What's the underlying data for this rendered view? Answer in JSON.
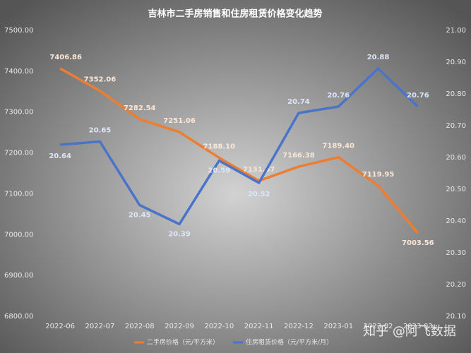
{
  "chart_data": {
    "type": "line",
    "title": "吉林市二手房销售和住房租赁价格变化趋势",
    "categories": [
      "2022-06",
      "2022-07",
      "2022-08",
      "2022-09",
      "2022-10",
      "2022-11",
      "2022-12",
      "2023-01",
      "2023-02",
      "2023-03"
    ],
    "series": [
      {
        "name": "二手房价格（元/平方米）",
        "color": "#ed7d31",
        "axis": "y",
        "values": [
          7406.86,
          7352.06,
          7282.54,
          7251.06,
          7188.1,
          7131.57,
          7166.38,
          7189.4,
          7119.95,
          7003.56
        ],
        "value_labels": [
          "7406.86",
          "7352.06",
          "7282.54",
          "7251.06",
          "7188.10",
          "7131.57",
          "7166.38",
          "7189.40",
          "7119.95",
          "7003.56"
        ]
      },
      {
        "name": "住房租赁价格（元/平方米/月）",
        "color": "#4a74c9",
        "axis": "y2",
        "values": [
          20.64,
          20.65,
          20.45,
          20.39,
          20.59,
          20.52,
          20.74,
          20.76,
          20.88,
          20.76
        ]
      }
    ],
    "ylim": [
      6800,
      7500
    ],
    "yticks": [
      {
        "value": 6800,
        "label": "6800.00"
      },
      {
        "value": 6900,
        "label": "6900.00"
      },
      {
        "value": 7000,
        "label": "7000.00"
      },
      {
        "value": 7100,
        "label": "7100.00"
      },
      {
        "value": 7200,
        "label": "7200.00"
      },
      {
        "value": 7300,
        "label": "7300.00"
      },
      {
        "value": 7400,
        "label": "7400.00"
      },
      {
        "value": 7500,
        "label": "7500.00"
      }
    ],
    "y2lim": [
      20.1,
      21
    ],
    "y2ticks": [
      {
        "value": 20.1,
        "label": "20.10"
      },
      {
        "value": 20.2,
        "label": "20.20"
      },
      {
        "value": 20.3,
        "label": "20.30"
      },
      {
        "value": 20.4,
        "label": "20.40"
      },
      {
        "value": 20.5,
        "label": "20.50"
      },
      {
        "value": 20.6,
        "label": "20.60"
      },
      {
        "value": 20.7,
        "label": "20.70"
      },
      {
        "value": 20.8,
        "label": "20.80"
      },
      {
        "value": 20.9,
        "label": "20.90"
      },
      {
        "value": 21,
        "label": "21.00"
      }
    ],
    "legend": "bottom",
    "annotations": [
      "知乎 @阿飞数据"
    ]
  }
}
